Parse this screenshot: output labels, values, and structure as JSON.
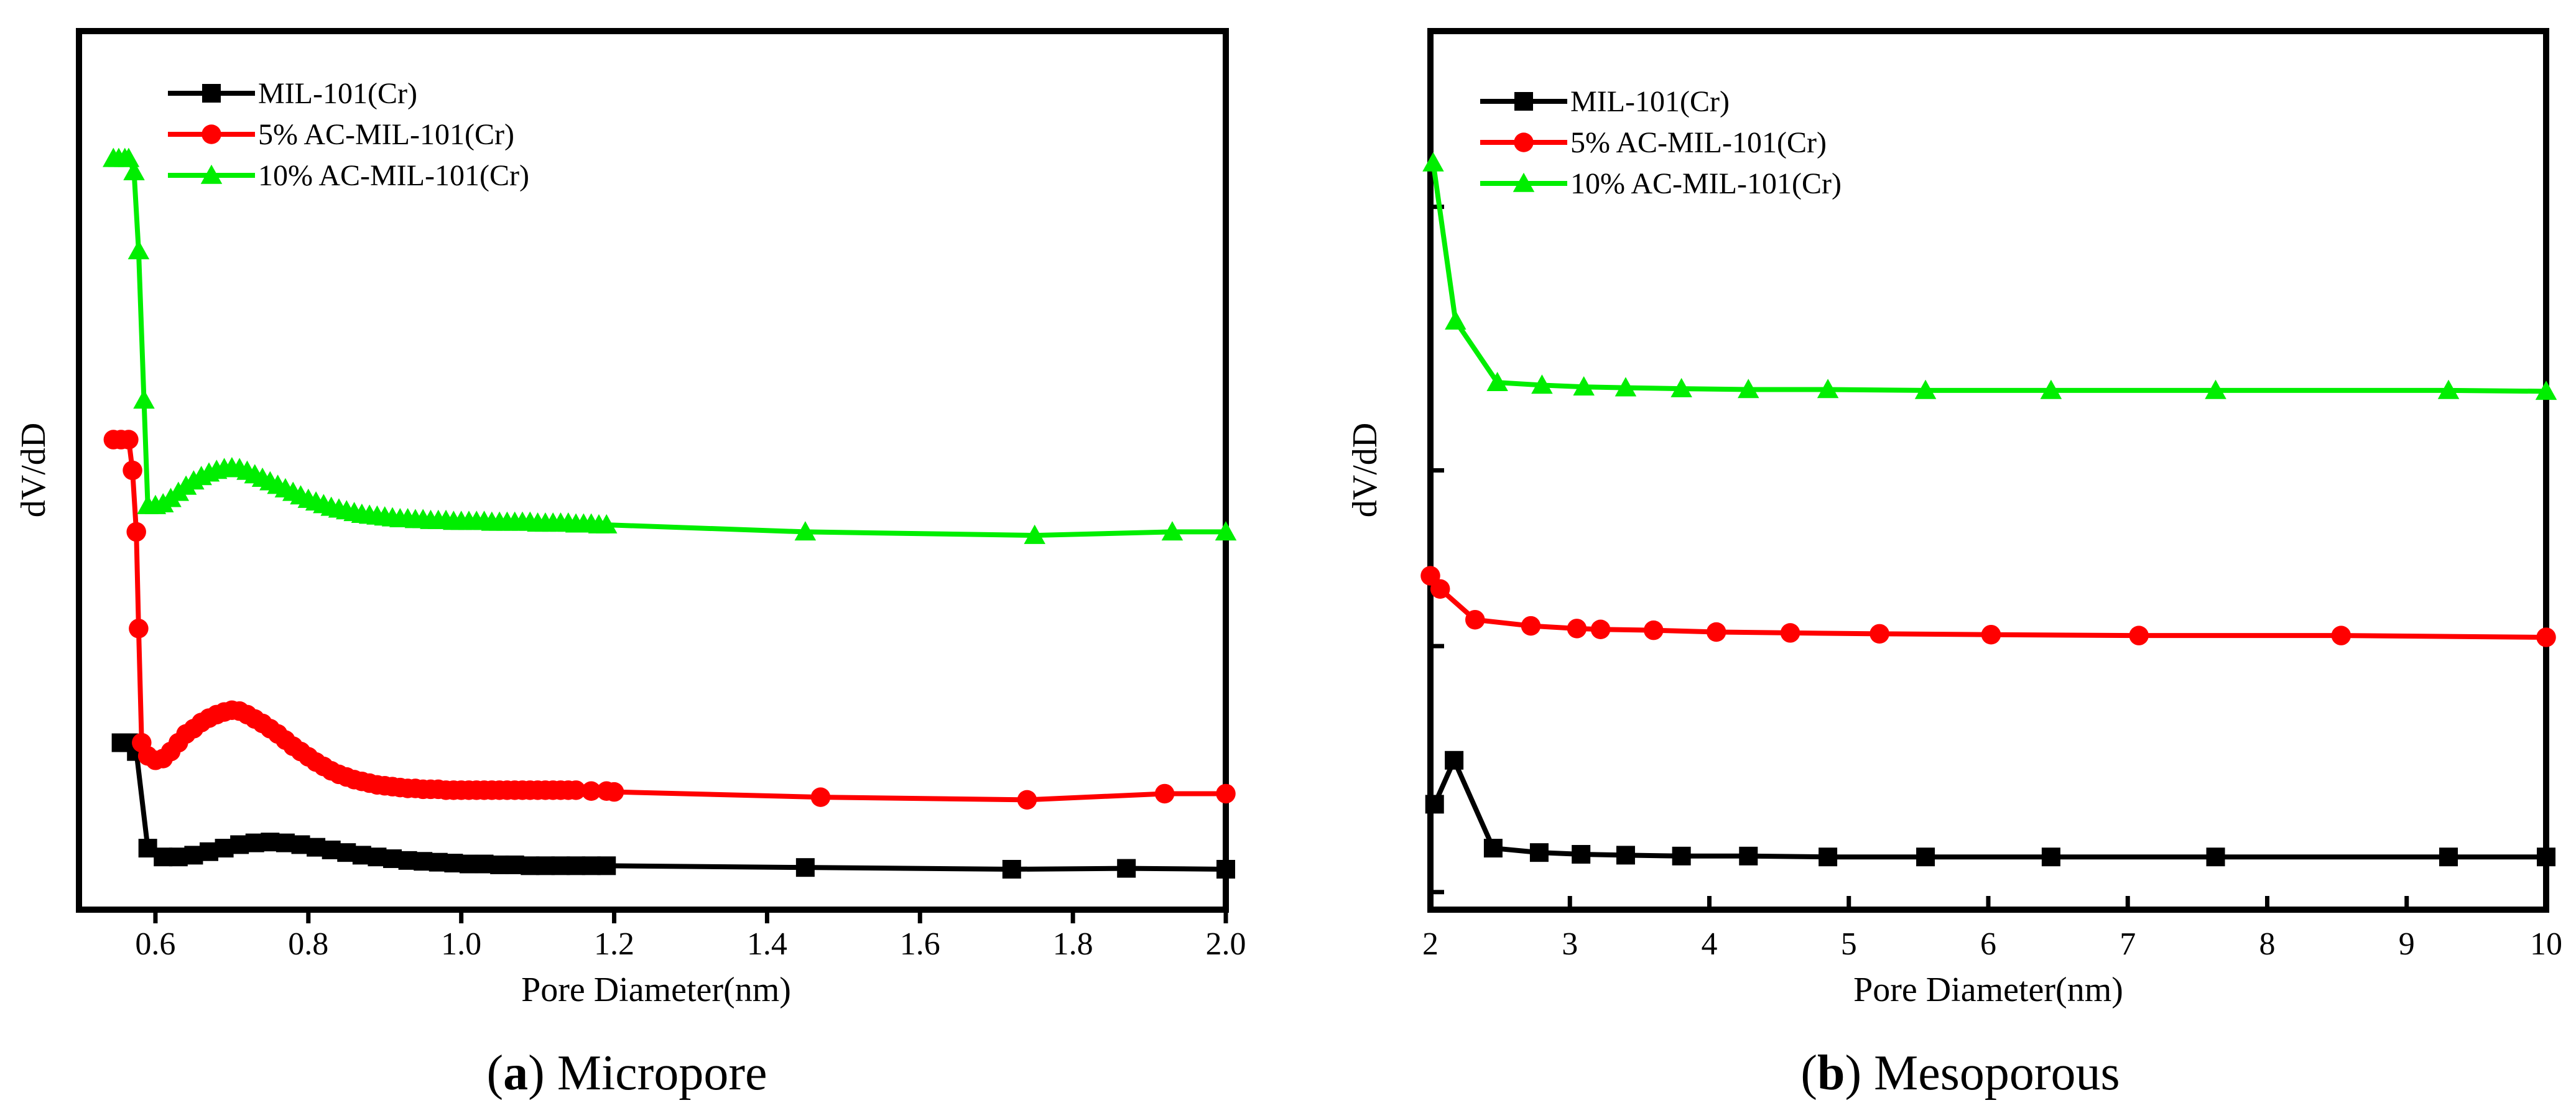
{
  "chart_data": [
    {
      "type": "line",
      "panel": "a",
      "caption_letter": "a",
      "caption_text": " Micropore",
      "xlabel": "Pore Diameter(nm)",
      "ylabel": "dV/dD",
      "xlim": [
        0.5,
        2.0
      ],
      "ylim": [
        0,
        1
      ],
      "xticks": [
        0.6,
        0.8,
        1.0,
        1.2,
        1.4,
        1.6,
        1.8,
        2.0
      ],
      "xtick_labels": [
        "0.6",
        "0.8",
        "1.0",
        "1.2",
        "1.4",
        "1.6",
        "1.8",
        "2.0"
      ],
      "yticks_visible": false,
      "legend_position": "top-left",
      "series": [
        {
          "name": "MIL-101(Cr)",
          "color": "#000000",
          "marker": "square",
          "x": [
            0.555,
            0.565,
            0.575,
            0.59,
            0.61,
            0.63,
            0.65,
            0.67,
            0.69,
            0.71,
            0.73,
            0.75,
            0.77,
            0.79,
            0.81,
            0.83,
            0.85,
            0.87,
            0.89,
            0.91,
            0.93,
            0.95,
            0.97,
            0.99,
            1.01,
            1.03,
            1.05,
            1.07,
            1.09,
            1.11,
            1.13,
            1.15,
            1.17,
            1.19,
            1.45,
            1.72,
            1.87,
            2.0
          ],
          "y": [
            0.19,
            0.19,
            0.18,
            0.07,
            0.06,
            0.06,
            0.062,
            0.066,
            0.07,
            0.074,
            0.076,
            0.077,
            0.076,
            0.074,
            0.071,
            0.068,
            0.065,
            0.062,
            0.06,
            0.058,
            0.056,
            0.055,
            0.054,
            0.053,
            0.052,
            0.052,
            0.051,
            0.051,
            0.05,
            0.05,
            0.05,
            0.05,
            0.05,
            0.05,
            0.048,
            0.046,
            0.047,
            0.046
          ]
        },
        {
          "name": "5% AC-MIL-101(Cr)",
          "color": "#ff0000",
          "marker": "circle",
          "x": [
            0.545,
            0.555,
            0.565,
            0.57,
            0.575,
            0.578,
            0.582,
            0.59,
            0.6,
            0.61,
            0.62,
            0.63,
            0.64,
            0.65,
            0.66,
            0.67,
            0.68,
            0.69,
            0.7,
            0.71,
            0.72,
            0.73,
            0.74,
            0.75,
            0.76,
            0.77,
            0.78,
            0.79,
            0.8,
            0.81,
            0.82,
            0.83,
            0.84,
            0.85,
            0.86,
            0.87,
            0.88,
            0.89,
            0.9,
            0.91,
            0.92,
            0.93,
            0.94,
            0.95,
            0.96,
            0.97,
            0.98,
            0.99,
            1.0,
            1.01,
            1.02,
            1.03,
            1.04,
            1.05,
            1.06,
            1.07,
            1.08,
            1.09,
            1.1,
            1.11,
            1.12,
            1.13,
            1.14,
            1.15,
            1.17,
            1.19,
            1.2,
            1.47,
            1.74,
            1.92,
            2.0
          ],
          "y": [
            0.535,
            0.535,
            0.535,
            0.5,
            0.43,
            0.32,
            0.19,
            0.175,
            0.17,
            0.172,
            0.18,
            0.19,
            0.2,
            0.206,
            0.213,
            0.218,
            0.222,
            0.225,
            0.227,
            0.226,
            0.222,
            0.217,
            0.212,
            0.206,
            0.2,
            0.193,
            0.186,
            0.18,
            0.174,
            0.168,
            0.163,
            0.158,
            0.154,
            0.151,
            0.148,
            0.146,
            0.144,
            0.142,
            0.141,
            0.14,
            0.139,
            0.138,
            0.138,
            0.137,
            0.137,
            0.137,
            0.136,
            0.136,
            0.136,
            0.136,
            0.136,
            0.136,
            0.136,
            0.136,
            0.136,
            0.136,
            0.136,
            0.136,
            0.136,
            0.136,
            0.136,
            0.136,
            0.136,
            0.136,
            0.135,
            0.135,
            0.134,
            0.128,
            0.125,
            0.132,
            0.132
          ]
        },
        {
          "name": "10% AC-MIL-101(Cr)",
          "color": "#00ee00",
          "marker": "triangle",
          "x": [
            0.545,
            0.552,
            0.56,
            0.565,
            0.572,
            0.578,
            0.585,
            0.59,
            0.6,
            0.61,
            0.62,
            0.63,
            0.64,
            0.65,
            0.66,
            0.67,
            0.68,
            0.69,
            0.7,
            0.71,
            0.72,
            0.73,
            0.74,
            0.75,
            0.76,
            0.77,
            0.78,
            0.79,
            0.8,
            0.81,
            0.82,
            0.83,
            0.84,
            0.85,
            0.86,
            0.87,
            0.88,
            0.89,
            0.9,
            0.91,
            0.92,
            0.93,
            0.94,
            0.95,
            0.96,
            0.97,
            0.98,
            0.99,
            1.0,
            1.01,
            1.02,
            1.03,
            1.04,
            1.05,
            1.06,
            1.07,
            1.08,
            1.09,
            1.1,
            1.11,
            1.12,
            1.13,
            1.14,
            1.15,
            1.16,
            1.17,
            1.18,
            1.19,
            1.45,
            1.75,
            1.93,
            2.0
          ],
          "y": [
            0.855,
            0.855,
            0.855,
            0.855,
            0.84,
            0.75,
            0.58,
            0.46,
            0.46,
            0.462,
            0.468,
            0.475,
            0.482,
            0.488,
            0.493,
            0.497,
            0.5,
            0.502,
            0.503,
            0.502,
            0.499,
            0.495,
            0.491,
            0.487,
            0.483,
            0.479,
            0.475,
            0.471,
            0.467,
            0.464,
            0.461,
            0.458,
            0.456,
            0.454,
            0.452,
            0.45,
            0.449,
            0.448,
            0.447,
            0.446,
            0.445,
            0.445,
            0.444,
            0.444,
            0.443,
            0.443,
            0.443,
            0.442,
            0.442,
            0.442,
            0.442,
            0.442,
            0.441,
            0.441,
            0.441,
            0.441,
            0.441,
            0.441,
            0.44,
            0.44,
            0.44,
            0.44,
            0.44,
            0.439,
            0.439,
            0.439,
            0.438,
            0.438,
            0.43,
            0.426,
            0.43,
            0.43
          ]
        }
      ]
    },
    {
      "type": "line",
      "panel": "b",
      "caption_letter": "b",
      "caption_text": " Mesoporous",
      "xlabel": "Pore Diameter(nm)",
      "ylabel": "dV/dD",
      "xlim": [
        2,
        10
      ],
      "ylim": [
        0,
        1
      ],
      "xticks": [
        2,
        3,
        4,
        5,
        6,
        7,
        8,
        9,
        10
      ],
      "xtick_labels": [
        "2",
        "3",
        "4",
        "5",
        "6",
        "7",
        "8",
        "9",
        "10"
      ],
      "yticks_visible": false,
      "legend_position": "top-left",
      "series": [
        {
          "name": "MIL-101(Cr)",
          "color": "#000000",
          "marker": "square",
          "x": [
            2.03,
            2.17,
            2.45,
            2.78,
            3.08,
            3.4,
            3.8,
            4.28,
            4.85,
            5.55,
            6.45,
            7.63,
            9.3,
            10.0
          ],
          "y": [
            0.12,
            0.17,
            0.07,
            0.065,
            0.063,
            0.062,
            0.061,
            0.061,
            0.06,
            0.06,
            0.06,
            0.06,
            0.06,
            0.06
          ]
        },
        {
          "name": "5% AC-MIL-101(Cr)",
          "color": "#ff0000",
          "marker": "circle",
          "x": [
            2.0,
            2.07,
            2.32,
            2.72,
            3.05,
            3.22,
            3.6,
            4.05,
            4.58,
            5.22,
            6.02,
            7.08,
            8.53,
            10.0
          ],
          "y": [
            0.38,
            0.365,
            0.33,
            0.323,
            0.32,
            0.319,
            0.318,
            0.316,
            0.315,
            0.314,
            0.313,
            0.312,
            0.312,
            0.31
          ]
        },
        {
          "name": "10% AC-MIL-101(Cr)",
          "color": "#00ee00",
          "marker": "triangle",
          "x": [
            2.02,
            2.18,
            2.48,
            2.8,
            3.1,
            3.4,
            3.8,
            4.28,
            4.85,
            5.55,
            6.45,
            7.63,
            9.3,
            10.0
          ],
          "y": [
            0.85,
            0.67,
            0.6,
            0.597,
            0.595,
            0.594,
            0.593,
            0.592,
            0.592,
            0.591,
            0.591,
            0.591,
            0.591,
            0.59
          ]
        }
      ]
    }
  ]
}
